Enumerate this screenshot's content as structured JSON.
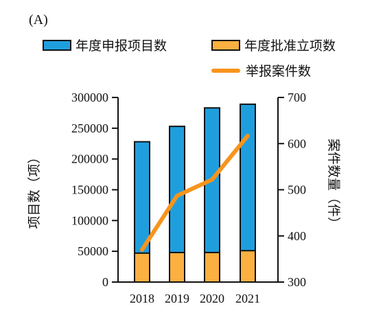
{
  "panel_label": "(A)",
  "colors": {
    "declared": "#1f9ede",
    "approved": "#fbb040",
    "cases": "#f7941d",
    "axis": "#111111"
  },
  "chart_data": {
    "type": "bar",
    "categories": [
      "2018",
      "2019",
      "2020",
      "2021"
    ],
    "series": [
      {
        "name": "年度申报项目数",
        "values": [
          228000,
          253000,
          283000,
          289000
        ],
        "axis": "left",
        "kind": "bar"
      },
      {
        "name": "年度批准立项数",
        "values": [
          47000,
          48000,
          48000,
          51000
        ],
        "axis": "left",
        "kind": "bar",
        "overlay": true
      },
      {
        "name": "举报案件数",
        "values": [
          370,
          487,
          522,
          617
        ],
        "axis": "right",
        "kind": "line"
      }
    ],
    "ylabel": "项目数（项）",
    "y2label": "案件数量（件）",
    "ylim": [
      0,
      300000
    ],
    "y2lim": [
      300,
      700
    ],
    "yticks": [
      0,
      50000,
      100000,
      150000,
      200000,
      250000,
      300000
    ],
    "y2ticks": [
      300,
      400,
      500,
      600,
      700
    ],
    "legend_position": "top"
  }
}
